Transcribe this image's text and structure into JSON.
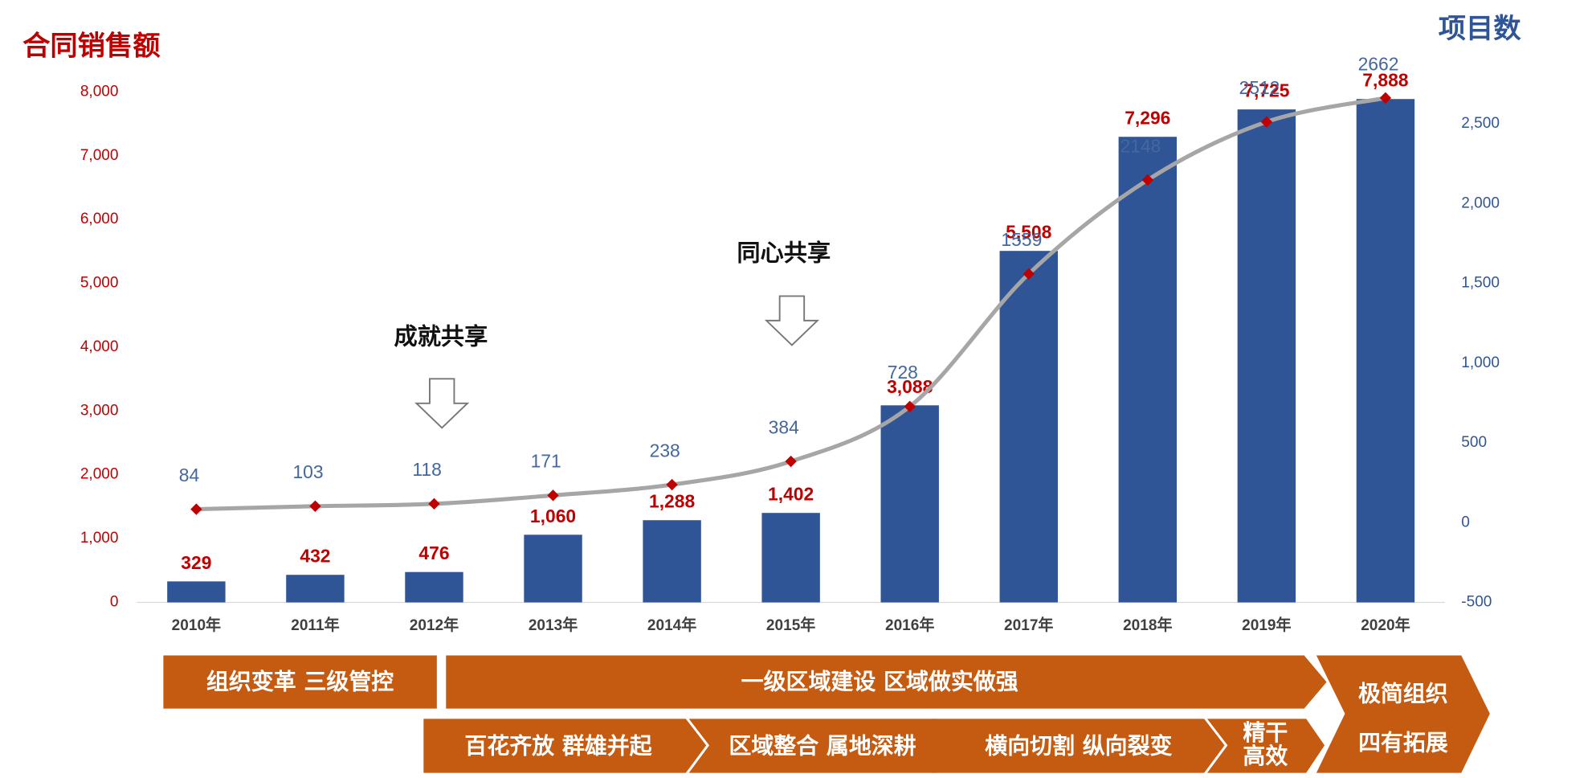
{
  "chart_data": {
    "type": "bar-line",
    "y_label": "合同销售额",
    "y2_label": "项目数",
    "categories": [
      "2010年",
      "2011年",
      "2012年",
      "2013年",
      "2014年",
      "2015年",
      "2016年",
      "2017年",
      "2018年",
      "2019年",
      "2020年"
    ],
    "series": [
      {
        "type": "bar",
        "color": "#2f5597",
        "label_color": "#c00000",
        "values": [
          329,
          432,
          476,
          1060,
          1288,
          1402,
          3088,
          5508,
          7296,
          7725,
          7888
        ],
        "value_labels": [
          "329",
          "432",
          "476",
          "1,060",
          "1,288",
          "1,402",
          "3,088",
          "5,508",
          "7,296",
          "7,725",
          "7,888"
        ]
      },
      {
        "type": "line",
        "axis": "y2",
        "color": "#a6a6a6",
        "marker_color": "#c00000",
        "label_color": "#44679f",
        "values": [
          84,
          103,
          118,
          171,
          238,
          384,
          728,
          1559,
          2148,
          2512,
          2662
        ]
      }
    ],
    "ylim": [
      0,
      8000
    ],
    "yticks": [
      0,
      {
        "value": 1000,
        "label": "1,000"
      },
      {
        "value": 2000,
        "label": "2,000"
      },
      {
        "value": 3000,
        "label": "3,000"
      },
      {
        "value": 4000,
        "label": "4,000"
      },
      {
        "value": 5000,
        "label": "5,000"
      },
      {
        "value": 6000,
        "label": "6,000"
      },
      {
        "value": 7000,
        "label": "7,000"
      },
      {
        "value": 8000,
        "label": "8,000"
      }
    ],
    "y2lim": [
      -500,
      2700
    ],
    "y2ticks": [
      -500,
      0,
      500,
      {
        "value": 1000,
        "label": "1,000"
      },
      {
        "value": 1500,
        "label": "1,500"
      },
      {
        "value": 2000,
        "label": "2,000"
      },
      {
        "value": 2500,
        "label": "2,500"
      }
    ],
    "annotations": [
      "成就共享",
      "同心共享"
    ],
    "phases": [
      {
        "lines": [
          "组织变革  三级管控"
        ]
      },
      {
        "lines": [
          "一级区域建设  区域做实做强"
        ]
      },
      {
        "lines": [
          "极简组织",
          "四有拓展"
        ]
      },
      {
        "lines": [
          "百花齐放  群雄并起"
        ]
      },
      {
        "lines": [
          "区域整合  属地深耕"
        ]
      },
      {
        "lines": [
          "横向切割  纵向裂变"
        ]
      },
      {
        "lines": [
          "精干",
          "高效"
        ]
      }
    ]
  }
}
